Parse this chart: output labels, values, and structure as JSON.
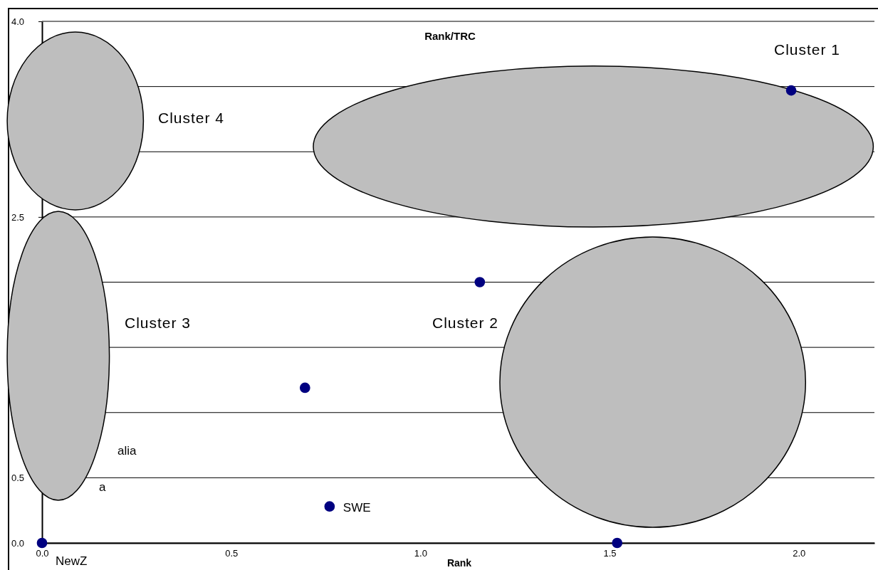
{
  "chart_data": {
    "type": "scatter",
    "title": "Rank/TRC",
    "xlabel": "Rank",
    "x": [
      0,
      0.695,
      0.76,
      1.157,
      1.52,
      1.98
    ],
    "series": [
      {
        "color": "#000080",
        "values": [
          0,
          1.19,
          0.28,
          2.0,
          0.0,
          3.47
        ]
      }
    ],
    "xlim": [
      0,
      2.2
    ],
    "xticks": [
      {
        "value": 0,
        "label": "0.0"
      },
      {
        "value": 0.5,
        "label": "0.5"
      },
      {
        "value": 1,
        "label": "1.0"
      },
      {
        "value": 1.5,
        "label": "1.5"
      },
      {
        "value": 2,
        "label": "2.0"
      }
    ],
    "ylim": [
      0,
      4
    ],
    "yticks": [
      {
        "value": 0,
        "label": "0.0"
      },
      {
        "value": 0.5,
        "label": "0.5"
      },
      {
        "value": 1,
        "label": null
      },
      {
        "value": 1.5,
        "label": null
      },
      {
        "value": 2,
        "label": null
      },
      {
        "value": 2.5,
        "label": "2.5"
      },
      {
        "value": 3,
        "label": null
      },
      {
        "value": 3.5,
        "label": null
      },
      {
        "value": 4,
        "label": "4.0"
      }
    ],
    "grid": "y",
    "marker": "circle",
    "annotations": [
      {
        "text": "NewZ",
        "x": 0,
        "y": 0
      },
      {
        "text": "SWE",
        "x": 0.76,
        "y": 0.28
      },
      "alia",
      "a",
      "Cluster 1",
      "Cluster 2",
      "Cluster 3",
      "Cluster 4"
    ]
  }
}
